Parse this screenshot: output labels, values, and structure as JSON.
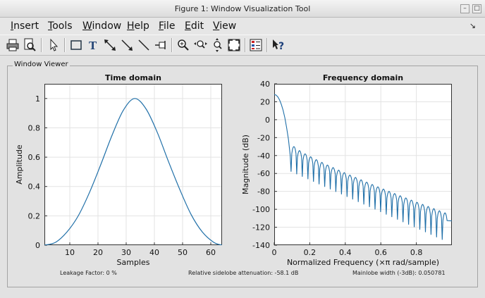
{
  "window": {
    "title": "Figure 1: Window Visualization Tool"
  },
  "titlebar_buttons": [
    "–",
    "□"
  ],
  "menu": [
    "Insert",
    "Tools",
    "Window",
    "Help",
    "File",
    "Edit",
    "View"
  ],
  "menu_mnemonics": [
    "I",
    "T",
    "W",
    "H",
    "F",
    "E",
    "V"
  ],
  "toolbar_icons": [
    "print-icon",
    "print-preview-icon",
    "select-arrow-icon",
    "insert-rectangle-icon",
    "insert-text-icon",
    "insert-double-arrow-icon",
    "insert-arrow-icon",
    "insert-line-icon",
    "pin-icon",
    "zoom-in-icon",
    "zoom-x-icon",
    "zoom-y-icon",
    "zoom-to-fit-icon",
    "legend-icon",
    "whats-this-icon"
  ],
  "panel": {
    "title": "Window Viewer"
  },
  "status": {
    "leakage": "Leakage Factor: 0 %",
    "sidelobe": "Relative sidelobe attenuation: -58.1 dB",
    "mainlobe": "Mainlobe width (-3dB): 0.050781"
  },
  "colors": {
    "line": "#1f6fa8"
  },
  "chart_data": [
    {
      "type": "line",
      "title": "Time domain",
      "xlabel": "Samples",
      "ylabel": "Amplitude",
      "xlim": [
        1,
        64
      ],
      "ylim": [
        0,
        1.1
      ],
      "xticks": [
        10,
        20,
        30,
        40,
        50,
        60
      ],
      "yticks": [
        0,
        0.2,
        0.4,
        0.6,
        0.8,
        1
      ],
      "ytick_labels": [
        "0",
        "0.2",
        "0.4",
        "0.6",
        "0.8",
        "1"
      ],
      "grid": true,
      "x": [
        1,
        5,
        9,
        13,
        17,
        21,
        25,
        29,
        33,
        37,
        41,
        45,
        49,
        53,
        57,
        61,
        64
      ],
      "y": [
        0,
        0.02,
        0.09,
        0.2,
        0.36,
        0.55,
        0.75,
        0.92,
        1,
        0.93,
        0.77,
        0.57,
        0.38,
        0.21,
        0.09,
        0.02,
        0
      ]
    },
    {
      "type": "line",
      "title": "Frequency domain",
      "xlabel": "Normalized Frequency  (×π rad/sample)",
      "ylabel": "Magnitude (dB)",
      "xlim": [
        0,
        1
      ],
      "ylim": [
        -140,
        40
      ],
      "xticks": [
        0,
        0.2,
        0.4,
        0.6,
        0.8
      ],
      "xtick_labels": [
        "0",
        "0.2",
        "0.4",
        "0.6",
        "0.8"
      ],
      "yticks": [
        -140,
        -120,
        -100,
        -80,
        -60,
        -40,
        -20,
        0,
        20,
        40
      ],
      "grid": true,
      "mainlobe": {
        "x": [
          0,
          0.01,
          0.02,
          0.03,
          0.04,
          0.05,
          0.06,
          0.07,
          0.08,
          0.09,
          0.095
        ],
        "y": [
          28,
          27.5,
          25.5,
          22,
          17,
          10.5,
          2,
          -9,
          -22,
          -40,
          -58
        ]
      },
      "sidelobes": {
        "first_null": 0.095,
        "spacing": 0.0315,
        "peak_start": -30,
        "peak_end": -104,
        "null_depth": -58
      }
    }
  ]
}
